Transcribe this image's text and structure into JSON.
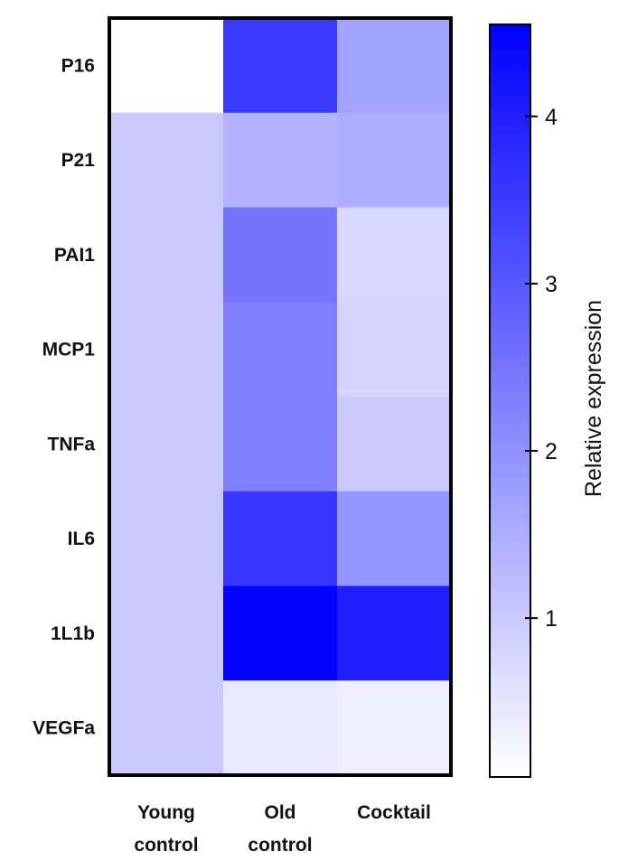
{
  "chart_data": {
    "type": "heatmap",
    "rows": [
      "P16",
      "P21",
      "PAI1",
      "MCP1",
      "TNFa",
      "IL6",
      "1L1b",
      "VEGFa"
    ],
    "columns": [
      {
        "line1": "Young",
        "line2": "control"
      },
      {
        "line1": "Old",
        "line2": "control"
      },
      {
        "line1": "Cocktail",
        "line2": ""
      }
    ],
    "values": [
      [
        0.05,
        3.5,
        1.7
      ],
      [
        1.0,
        1.4,
        1.5
      ],
      [
        1.0,
        2.5,
        0.75
      ],
      [
        1.0,
        2.3,
        0.8
      ],
      [
        1.0,
        2.3,
        1.0
      ],
      [
        1.0,
        3.6,
        1.9
      ],
      [
        1.0,
        4.5,
        4.0
      ],
      [
        1.0,
        0.45,
        0.35
      ]
    ],
    "colorbar": {
      "label": "Relative expression",
      "min": 0.05,
      "max": 4.55,
      "ticks": [
        1,
        2,
        3,
        4
      ],
      "tick_labels": [
        "1",
        "2",
        "3",
        "4"
      ]
    },
    "colors": {
      "low": "#ffffff",
      "high": "#0000ff",
      "frame": "#000000"
    }
  }
}
